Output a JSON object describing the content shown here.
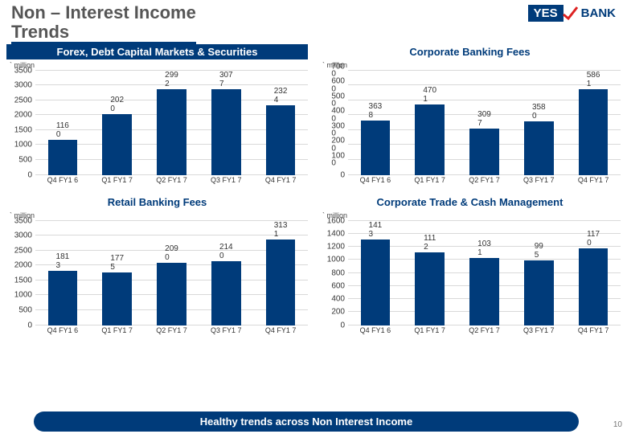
{
  "title_line1": "Non – Interest Income",
  "title_line2": "Trends",
  "logo": {
    "yes": "YES",
    "bank": "BANK"
  },
  "bar_color": "#003b7a",
  "gridline_color": "#d9d9d9",
  "x_categories": [
    "Q4 FY1 6",
    "Q1 FY1 7",
    "Q2 FY1 7",
    "Q3 FY1 7",
    "Q4 FY1 7"
  ],
  "charts": [
    {
      "title": "Forex, Debt Capital Markets  & Securities",
      "title_style": "bar",
      "unit": "` million",
      "ymax": 3500,
      "ytick_step": 500,
      "bar_labels": [
        "116 0",
        "202 0",
        "299 2",
        "307 7",
        "232 4"
      ],
      "values": [
        1160,
        2020,
        2992,
        3077,
        2324
      ]
    },
    {
      "title": "Corporate Banking Fees",
      "title_style": "plain",
      "unit": "` million",
      "ymax": 7000,
      "ytick_step": 1000,
      "ytick_render": "split",
      "bar_labels": [
        "363 8",
        "470 1",
        "309 7",
        "358 0",
        "586 1"
      ],
      "values": [
        3638,
        4701,
        3097,
        3580,
        5861
      ]
    },
    {
      "title": "Retail Banking Fees",
      "title_style": "plain",
      "unit": "` million",
      "ymax": 3500,
      "ytick_step": 500,
      "bar_labels": [
        "181 3",
        "177 5",
        "209 0",
        "214 0",
        "313 1"
      ],
      "values": [
        1813,
        1775,
        2090,
        2140,
        3131
      ]
    },
    {
      "title": "Corporate Trade & Cash Management",
      "title_style": "plain",
      "unit": "` million",
      "ymax": 1600,
      "ytick_step": 200,
      "bar_labels": [
        "141 3",
        "111 2",
        "103 1",
        "99 5",
        "117 0"
      ],
      "values": [
        1413,
        1112,
        1031,
        995,
        1170
      ]
    }
  ],
  "footer": "Healthy trends across Non Interest Income",
  "slide_number": "10"
}
